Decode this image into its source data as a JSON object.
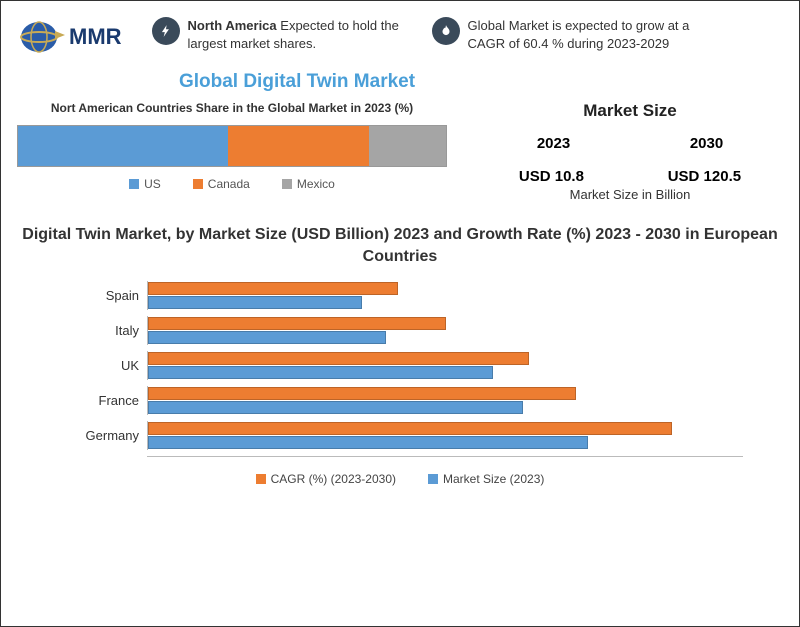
{
  "colors": {
    "blue": "#5b9bd5",
    "orange": "#ed7d31",
    "grey": "#a5a5a5",
    "titleBlue": "#4a9fd8",
    "darkNavy": "#1a3a6e"
  },
  "logo": {
    "text": "MMR"
  },
  "header": {
    "item1": {
      "bold": "North America",
      "rest": " Expected to hold the largest market shares."
    },
    "item2": "Global Market is expected to grow at a CAGR of 60.4 % during 2023-2029"
  },
  "mainTitle": "Global Digital Twin Market",
  "shareChart": {
    "title": "Nort American Countries Share in the Global Market in 2023  (%)",
    "segments": [
      {
        "label": "US",
        "pct": 49,
        "color": "#5b9bd5"
      },
      {
        "label": "Canada",
        "pct": 33,
        "color": "#ed7d31"
      },
      {
        "label": "Mexico",
        "pct": 18,
        "color": "#a5a5a5"
      }
    ]
  },
  "marketSize": {
    "title": "Market Size",
    "years": [
      "2023",
      "2030"
    ],
    "values": [
      "USD 10.8",
      "USD 120.5"
    ],
    "subtitle": "Market Size in Billion"
  },
  "euroChart": {
    "title": "Digital Twin Market, by Market Size (USD Billion) 2023 and Growth Rate (%) 2023 - 2030 in European Countries",
    "maxScale": 100,
    "rows": [
      {
        "country": "Spain",
        "cagr": 42,
        "size": 36
      },
      {
        "country": "Italy",
        "cagr": 50,
        "size": 40
      },
      {
        "country": "UK",
        "cagr": 64,
        "size": 58
      },
      {
        "country": "France",
        "cagr": 72,
        "size": 63
      },
      {
        "country": "Germany",
        "cagr": 88,
        "size": 74
      }
    ],
    "legend": {
      "cagr": "CAGR (%) (2023-2030)",
      "size": "Market Size (2023)"
    },
    "barColors": {
      "cagr": "#ed7d31",
      "size": "#5b9bd5"
    }
  }
}
